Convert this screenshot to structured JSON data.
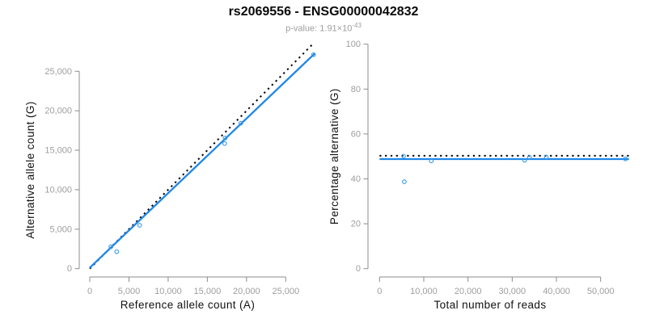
{
  "header": {
    "title": "rs2069556 - ENSG00000042832",
    "subtitle_prefix": "p-value: 1.91×10",
    "subtitle_exponent": "-43"
  },
  "colors": {
    "fit_line_blue": "#1f87e8",
    "point_blue": "#3b99e8",
    "reference_black": "#000000",
    "axis_gray": "#8c8c8c",
    "tick_label_gray": "#9e9e9e",
    "axis_title_color": "#111111"
  },
  "chart_data": [
    {
      "type": "scatter",
      "name": "allele-counts-plot",
      "xlabel": "Reference allele count (A)",
      "ylabel": "Alternative allele count (G)",
      "xticks": [
        0,
        5000,
        10000,
        15000,
        20000,
        25000
      ],
      "yticks": [
        0,
        5000,
        10000,
        15000,
        20000,
        25000
      ],
      "xlim": [
        0,
        28800
      ],
      "ylim": [
        0,
        28500
      ],
      "grid": false,
      "points": [
        [
          2700,
          2780
        ],
        [
          3440,
          2150
        ],
        [
          6360,
          5490
        ],
        [
          17200,
          15855
        ],
        [
          17265,
          16540
        ],
        [
          19270,
          18420
        ],
        [
          28550,
          27110
        ]
      ],
      "lines": [
        {
          "name": "identity-line",
          "style": "dotted",
          "color": "#000000",
          "from": [
            0,
            0
          ],
          "to": [
            28400,
            28400
          ]
        },
        {
          "name": "fit-line",
          "style": "solid",
          "color": "#1f87e8",
          "from": [
            0,
            120
          ],
          "to": [
            28700,
            27250
          ]
        }
      ]
    },
    {
      "type": "scatter",
      "name": "percentage-alternative-plot",
      "xlabel": "Total number of reads",
      "ylabel": "Percentage alternative (G)",
      "xticks": [
        0,
        10000,
        20000,
        30000,
        40000,
        50000
      ],
      "yticks": [
        0,
        20,
        40,
        60,
        80,
        100
      ],
      "xlim": [
        0,
        56400
      ],
      "ylim": [
        0,
        100
      ],
      "grid": false,
      "points": [
        [
          5430,
          50.1
        ],
        [
          5600,
          38.7
        ],
        [
          11700,
          48.0
        ],
        [
          32800,
          48.3
        ],
        [
          33900,
          49.6
        ],
        [
          37700,
          49.7
        ],
        [
          55600,
          48.9
        ]
      ],
      "lines": [
        {
          "name": "reference-line-50pct",
          "style": "dotted",
          "color": "#000000",
          "from": [
            0,
            50.3
          ],
          "to": [
            56400,
            50.3
          ]
        },
        {
          "name": "fit-line",
          "style": "solid",
          "color": "#1f87e8",
          "from": [
            0,
            48.8
          ],
          "to": [
            56400,
            48.8
          ]
        }
      ]
    }
  ]
}
